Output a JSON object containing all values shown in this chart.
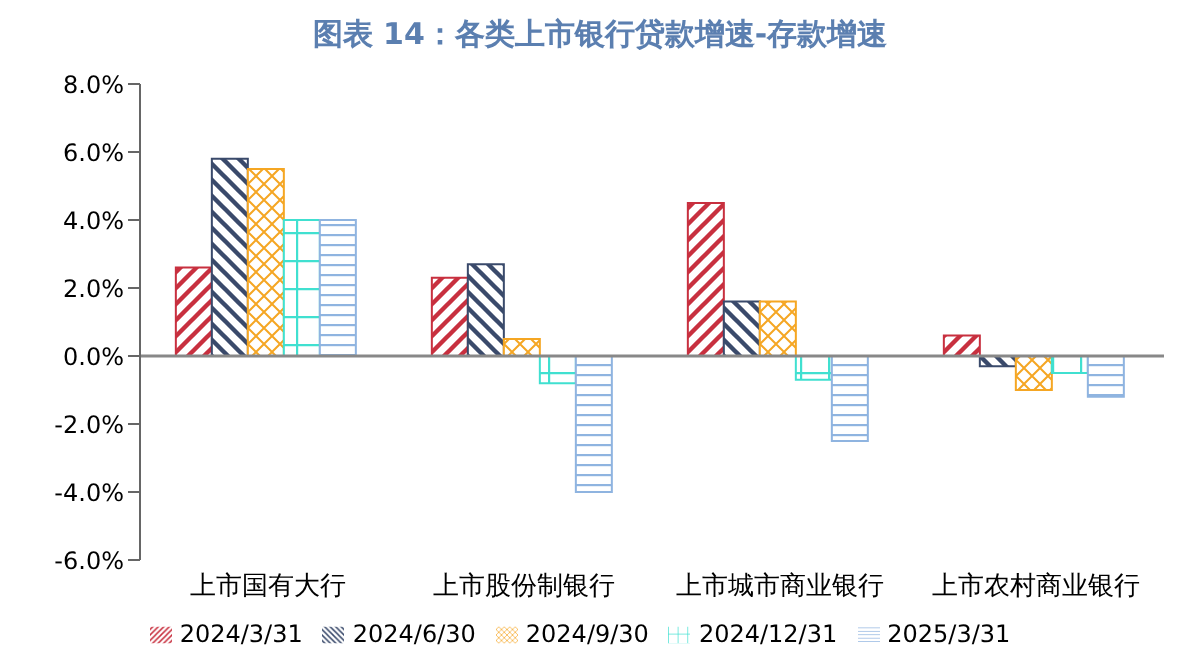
{
  "chart_data": {
    "type": "bar",
    "title": "图表 14：各类上市银行贷款增速-存款增速",
    "categories": [
      "上市国有大行",
      "上市股份制银行",
      "上市城市商业银行",
      "上市农村商业银行"
    ],
    "series": [
      {
        "name": "2024/3/31",
        "color": "#c8303f",
        "values": [
          2.6,
          2.3,
          4.5,
          0.6
        ]
      },
      {
        "name": "2024/6/30",
        "color": "#3a4a6b",
        "values": [
          5.8,
          2.7,
          1.6,
          -0.3
        ]
      },
      {
        "name": "2024/9/30",
        "color": "#f5a623",
        "values": [
          5.5,
          0.5,
          1.6,
          -1.0
        ]
      },
      {
        "name": "2024/12/31",
        "color": "#40e0d0",
        "values": [
          4.0,
          -0.8,
          -0.7,
          -0.5
        ]
      },
      {
        "name": "2025/3/31",
        "color": "#8fb4e0",
        "values": [
          4.0,
          -4.0,
          -2.5,
          -1.2
        ]
      }
    ],
    "ylim": [
      -6,
      8
    ],
    "yticks": [
      {
        "value": -6,
        "label": "-6.0%"
      },
      {
        "value": -4,
        "label": "-4.0%"
      },
      {
        "value": -2,
        "label": "-2.0%"
      },
      {
        "value": 0,
        "label": "0.0%"
      },
      {
        "value": 2,
        "label": "2.0%"
      },
      {
        "value": 4,
        "label": "4.0%"
      },
      {
        "value": 6,
        "label": "6.0%"
      },
      {
        "value": 8,
        "label": "8.0%"
      }
    ],
    "legend": "bottom"
  }
}
